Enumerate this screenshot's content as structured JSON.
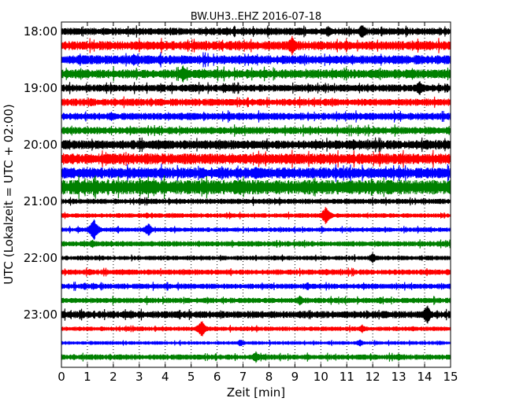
{
  "chart_data": {
    "type": "line",
    "subtype": "dayplot-seismogram",
    "title": "BW.UH3..EHZ 2016-07-18",
    "xlabel": "Zeit  [min]",
    "ylabel": "UTC (Lokalzeit = UTC + 02:00)",
    "xlim": [
      0,
      15
    ],
    "x_ticks": [
      "0",
      "1",
      "2",
      "3",
      "4",
      "5",
      "6",
      "7",
      "8",
      "9",
      "10",
      "11",
      "12",
      "13",
      "14",
      "15"
    ],
    "y_tick_labels": [
      "18:00",
      "19:00",
      "20:00",
      "21:00",
      "22:00",
      "23:00"
    ],
    "grid": "vertical dotted lines at each minute",
    "trace_colors": [
      "#000000",
      "#ff0000",
      "#0000ff",
      "#008000"
    ],
    "traces": [
      {
        "start": "18:00",
        "color_index": 0,
        "base_amp": 4,
        "events": [
          [
            10.3,
            8
          ],
          [
            11.6,
            10
          ]
        ]
      },
      {
        "start": "18:15",
        "color_index": 1,
        "base_amp": 5,
        "events": [
          [
            8.9,
            14
          ],
          [
            3.0,
            6
          ],
          [
            14.2,
            6
          ]
        ]
      },
      {
        "start": "18:30",
        "color_index": 2,
        "base_amp": 5,
        "events": [
          [
            2.8,
            9
          ],
          [
            3.8,
            7
          ]
        ]
      },
      {
        "start": "18:45",
        "color_index": 3,
        "base_amp": 5,
        "events": [
          [
            4.7,
            12
          ],
          [
            4.1,
            7
          ],
          [
            13.6,
            6
          ]
        ]
      },
      {
        "start": "19:00",
        "color_index": 0,
        "base_amp": 4,
        "events": [
          [
            6.3,
            7
          ],
          [
            13.8,
            10
          ]
        ]
      },
      {
        "start": "19:15",
        "color_index": 1,
        "base_amp": 4,
        "events": [
          [
            4.3,
            5
          ]
        ]
      },
      {
        "start": "19:30",
        "color_index": 2,
        "base_amp": 4,
        "events": [
          [
            8.2,
            5
          ]
        ]
      },
      {
        "start": "19:45",
        "color_index": 3,
        "base_amp": 4,
        "events": [
          [
            0.9,
            5
          ],
          [
            6.1,
            5
          ]
        ]
      },
      {
        "start": "20:00",
        "color_index": 0,
        "base_amp": 5,
        "events": [
          [
            9.8,
            7
          ],
          [
            14.1,
            8
          ]
        ]
      },
      {
        "start": "20:15",
        "color_index": 1,
        "base_amp": 6,
        "events": [
          [
            10.0,
            9
          ],
          [
            11.2,
            6
          ]
        ]
      },
      {
        "start": "20:30",
        "color_index": 2,
        "base_amp": 6,
        "events": [
          [
            7.5,
            10
          ],
          [
            8.6,
            9
          ],
          [
            1.5,
            7
          ]
        ]
      },
      {
        "start": "20:45",
        "color_index": 3,
        "base_amp": 8,
        "events": [
          [
            5.5,
            10
          ],
          [
            6.9,
            12
          ]
        ]
      },
      {
        "start": "21:00",
        "color_index": 0,
        "base_amp": 3,
        "events": []
      },
      {
        "start": "21:15",
        "color_index": 1,
        "base_amp": 2.5,
        "events": [
          [
            10.2,
            13
          ],
          [
            3.3,
            4
          ],
          [
            6.5,
            4
          ]
        ]
      },
      {
        "start": "21:30",
        "color_index": 2,
        "base_amp": 2.5,
        "events": [
          [
            1.25,
            16
          ],
          [
            3.35,
            9
          ]
        ]
      },
      {
        "start": "21:45",
        "color_index": 3,
        "base_amp": 3,
        "events": [
          [
            1.2,
            6
          ]
        ]
      },
      {
        "start": "22:00",
        "color_index": 0,
        "base_amp": 2.5,
        "events": [
          [
            12.0,
            7
          ],
          [
            8.2,
            4
          ]
        ]
      },
      {
        "start": "22:15",
        "color_index": 1,
        "base_amp": 3,
        "events": [
          [
            1.1,
            5
          ],
          [
            14.9,
            5
          ]
        ]
      },
      {
        "start": "22:30",
        "color_index": 2,
        "base_amp": 3,
        "events": [
          [
            0.9,
            5
          ],
          [
            9.5,
            6
          ]
        ]
      },
      {
        "start": "22:45",
        "color_index": 3,
        "base_amp": 3,
        "events": [
          [
            9.2,
            7
          ],
          [
            12.3,
            5
          ]
        ]
      },
      {
        "start": "23:00",
        "color_index": 0,
        "base_amp": 4,
        "events": [
          [
            14.1,
            13
          ],
          [
            2.0,
            6
          ]
        ]
      },
      {
        "start": "23:15",
        "color_index": 1,
        "base_amp": 2.5,
        "events": [
          [
            5.4,
            12
          ],
          [
            11.6,
            6
          ]
        ]
      },
      {
        "start": "23:30",
        "color_index": 2,
        "base_amp": 2,
        "events": [
          [
            6.9,
            5
          ],
          [
            11.5,
            5
          ]
        ]
      },
      {
        "start": "23:45",
        "color_index": 3,
        "base_amp": 3,
        "events": [
          [
            7.5,
            8
          ],
          [
            13.0,
            5
          ]
        ]
      }
    ]
  }
}
